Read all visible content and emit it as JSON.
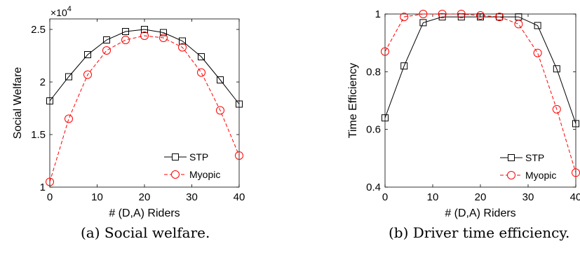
{
  "figure": {
    "captions": [
      "(a) Social welfare.",
      "(b) Driver time efficiency."
    ]
  },
  "chart_data": [
    {
      "type": "line",
      "xlabel": "# (D,A) Riders",
      "ylabel": "Social Welfare",
      "multiplier_label": "×10",
      "multiplier_exponent": "4",
      "xlim": [
        0,
        40
      ],
      "ylim": [
        1.0,
        2.6
      ],
      "xticks": [
        0,
        10,
        20,
        30,
        40
      ],
      "yticks": [
        1,
        1.5,
        2,
        2.5
      ],
      "ytick_labels": [
        "1",
        "1.5",
        "2",
        "2.5"
      ],
      "x": [
        0,
        4,
        8,
        12,
        16,
        20,
        24,
        28,
        32,
        36,
        40
      ],
      "legend_position": "bottom-right",
      "series": [
        {
          "name": "STP",
          "color": "#000000",
          "marker": "square",
          "dash": "solid",
          "values": [
            1.82,
            2.05,
            2.26,
            2.4,
            2.48,
            2.5,
            2.47,
            2.39,
            2.24,
            2.02,
            1.79
          ]
        },
        {
          "name": "Myopic",
          "color": "#ff0000",
          "marker": "circle",
          "dash": "dashed",
          "values": [
            1.05,
            1.65,
            2.07,
            2.3,
            2.4,
            2.44,
            2.42,
            2.33,
            2.09,
            1.73,
            1.3
          ]
        }
      ]
    },
    {
      "type": "line",
      "xlabel": "# (D,A) Riders",
      "ylabel": "Time Efficiency",
      "xlim": [
        0,
        40
      ],
      "ylim": [
        0.4,
        1.0
      ],
      "xticks": [
        0,
        10,
        20,
        30,
        40
      ],
      "yticks": [
        0.4,
        0.6,
        0.8,
        1
      ],
      "ytick_labels": [
        "0.4",
        "0.6",
        "0.8",
        "1"
      ],
      "x": [
        0,
        4,
        8,
        12,
        16,
        20,
        24,
        28,
        32,
        36,
        40
      ],
      "legend_position": "bottom-right",
      "series": [
        {
          "name": "STP",
          "color": "#000000",
          "marker": "square",
          "dash": "solid",
          "values": [
            0.64,
            0.82,
            0.97,
            0.99,
            0.99,
            0.99,
            0.99,
            0.99,
            0.96,
            0.81,
            0.62
          ]
        },
        {
          "name": "Myopic",
          "color": "#ff0000",
          "marker": "circle",
          "dash": "dashed",
          "values": [
            0.87,
            0.99,
            1.0,
            1.0,
            1.0,
            0.995,
            0.99,
            0.965,
            0.865,
            0.67,
            0.45
          ]
        }
      ]
    }
  ]
}
